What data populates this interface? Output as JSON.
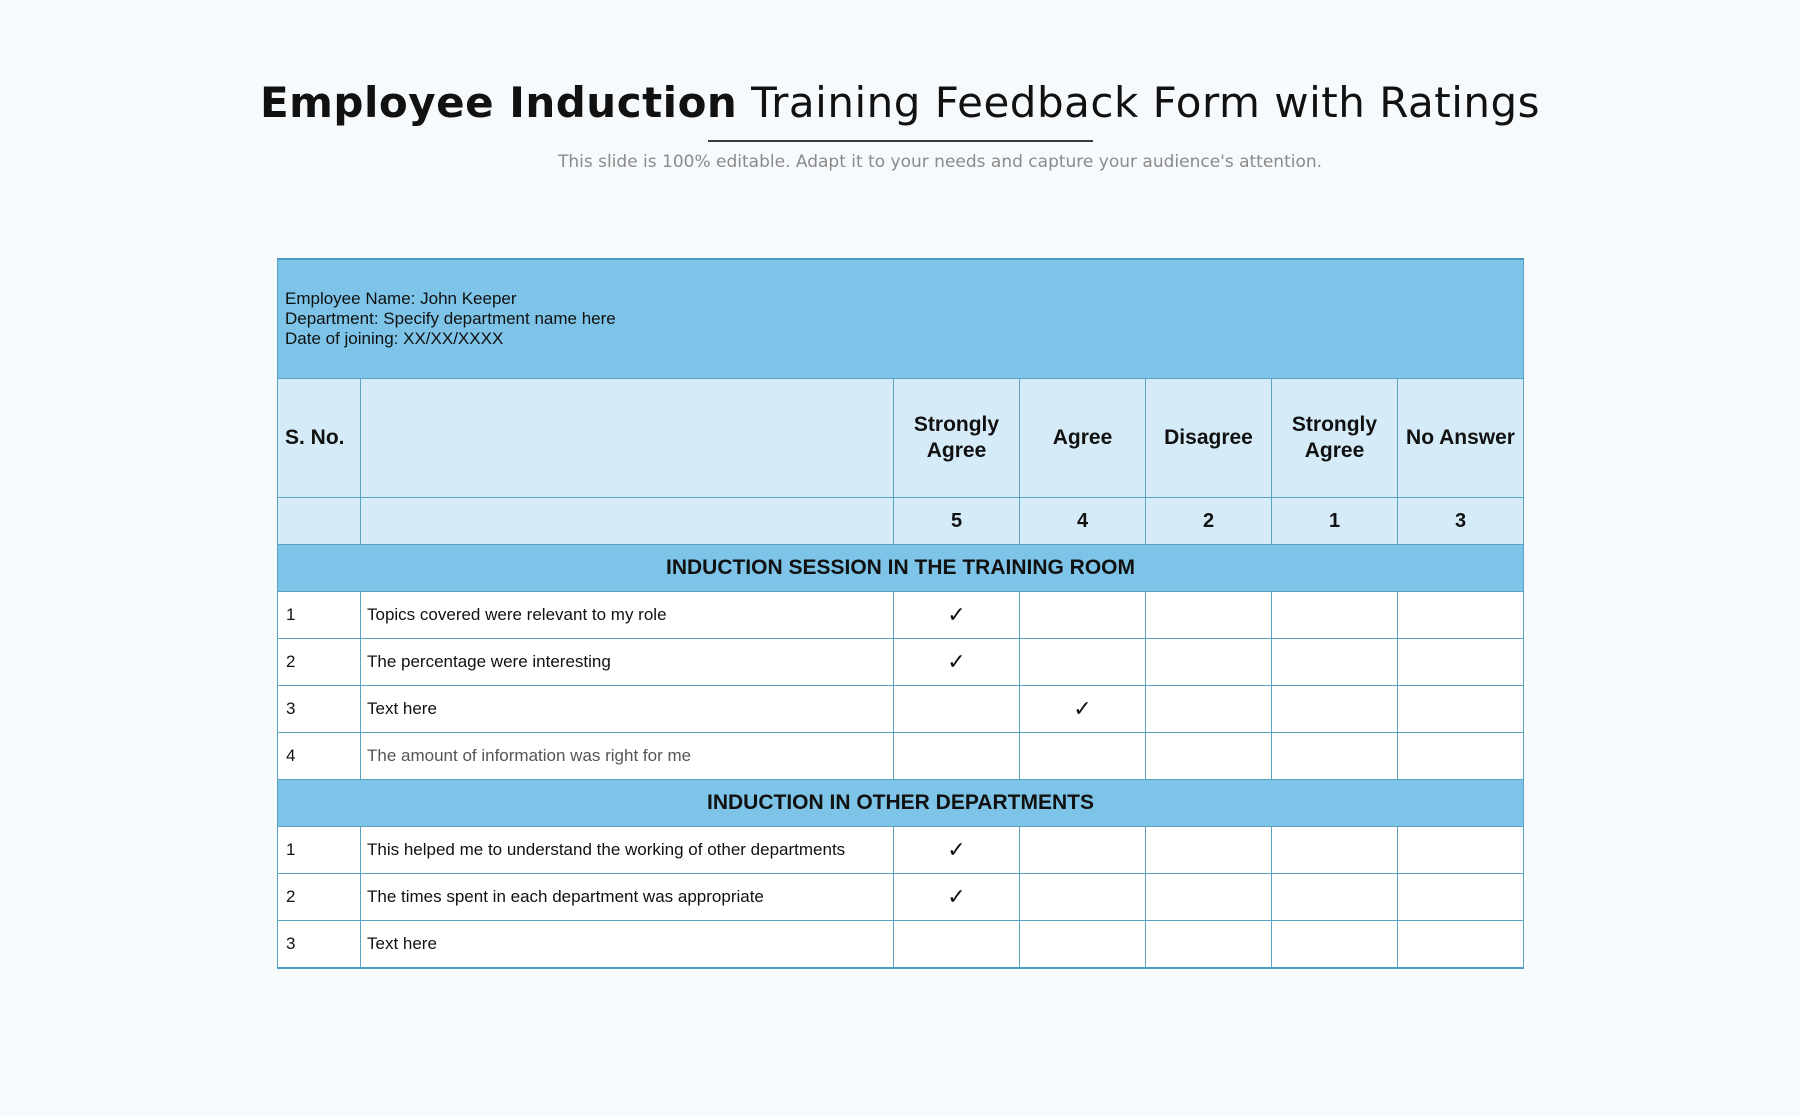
{
  "title": {
    "bold_part": "Employee Induction",
    "rest": " Training Feedback Form with Ratings"
  },
  "subtitle": "This slide  is  100% editable. Adapt it to your needs and capture your audience's attention.",
  "employee_info": {
    "name": "Employee Name: John Keeper",
    "department": "Department: Specify department name here",
    "date_of_joining": "Date of joining: XX/XX/XXXX"
  },
  "columns": {
    "sno": "S. No.",
    "statement": "",
    "ratings": [
      {
        "label": "Strongly Agree",
        "score": "5"
      },
      {
        "label": "Agree",
        "score": "4"
      },
      {
        "label": "Disagree",
        "score": "2"
      },
      {
        "label": "Strongly Agree",
        "score": "1"
      },
      {
        "label": "No Answer",
        "score": "3"
      }
    ]
  },
  "check_symbol": "✓",
  "sections": [
    {
      "title": "INDUCTION SESSION IN THE TRAINING ROOM",
      "rows": [
        {
          "no": "1",
          "text": "Topics covered were relevant to my role",
          "checked_column": 0
        },
        {
          "no": "2",
          "text": "The percentage were interesting",
          "checked_column": 0
        },
        {
          "no": "3",
          "text": "Text here",
          "checked_column": 1
        },
        {
          "no": "4",
          "text": "The amount of information was right for me",
          "checked_column": null
        }
      ]
    },
    {
      "title": "INDUCTION IN OTHER DEPARTMENTS",
      "rows": [
        {
          "no": "1",
          "text": "This helped me to understand the working of other departments",
          "checked_column": 0
        },
        {
          "no": "2",
          "text": "The times spent in each department was appropriate",
          "checked_column": 0
        },
        {
          "no": "3",
          "text": "Text here",
          "checked_column": null
        }
      ]
    }
  ],
  "colors": {
    "header_blue": "#7dc4e8",
    "light_blue": "#d5ebf7",
    "border": "#5ba3c0"
  }
}
